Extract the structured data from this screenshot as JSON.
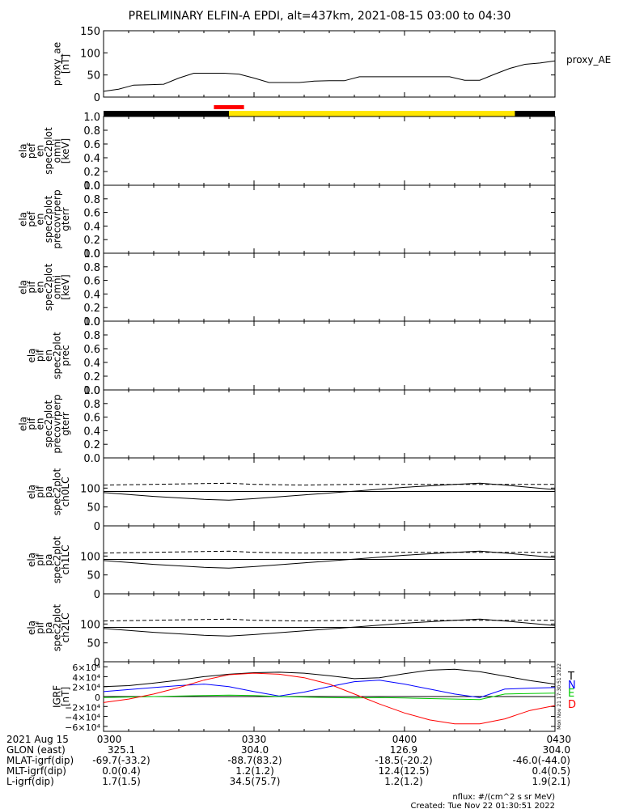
{
  "title": "PRELIMINARY ELFIN-A EPDI, alt=437km, 2021-08-15 03:00 to 04:30",
  "chart_data": [
    {
      "id": "ae",
      "type": "line",
      "ylabel_lines": [
        "proxy_ae",
        "[nT]"
      ],
      "yticks": [
        "150",
        "100",
        "50",
        "0"
      ],
      "ylim": [
        0,
        150
      ],
      "legend": "proxy_AE",
      "x": [
        0,
        3,
        6,
        9,
        12,
        15,
        18,
        21,
        24,
        27,
        30,
        33,
        36,
        39,
        42,
        45,
        48,
        51,
        54,
        57,
        60,
        63,
        66,
        69,
        72,
        75,
        78,
        81,
        84,
        87,
        90
      ],
      "values": [
        13,
        18,
        27,
        28,
        29,
        43,
        54,
        54,
        54,
        52,
        43,
        33,
        33,
        33,
        36,
        37,
        37,
        46,
        46,
        46,
        46,
        46,
        46,
        46,
        38,
        38,
        52,
        65,
        74,
        77,
        82
      ]
    },
    {
      "id": "bar",
      "type": "timeline",
      "segments": [
        {
          "from": 0,
          "to": 25,
          "color": "#000000"
        },
        {
          "from": 25,
          "to": 82,
          "color": "#ffe600"
        },
        {
          "from": 82,
          "to": 90,
          "color": "#000000"
        }
      ],
      "marker": {
        "from": 22,
        "to": 28,
        "color": "#ff0000"
      }
    },
    {
      "id": "p1",
      "type": "line",
      "ylabel_lines": [
        "ela",
        "pef",
        "en",
        "spec2plot",
        "omni",
        "[keV]"
      ],
      "yticks": [
        "1.0",
        "0.8",
        "0.6",
        "0.4",
        "0.2",
        "0.0"
      ],
      "ylim": [
        0,
        1
      ]
    },
    {
      "id": "p2",
      "type": "line",
      "ylabel_lines": [
        "ela",
        "pef",
        "en",
        "spec2plot",
        "precovrperp",
        "gterr"
      ],
      "yticks": [
        "1.0",
        "0.8",
        "0.6",
        "0.4",
        "0.2",
        "0.0"
      ],
      "ylim": [
        0,
        1
      ]
    },
    {
      "id": "p3",
      "type": "line",
      "ylabel_lines": [
        "ela",
        "pif",
        "en",
        "spec2plot",
        "omni",
        "[keV]"
      ],
      "yticks": [
        "1.0",
        "0.8",
        "0.6",
        "0.4",
        "0.2",
        "0.0"
      ],
      "ylim": [
        0,
        1
      ]
    },
    {
      "id": "p4",
      "type": "line",
      "ylabel_lines": [
        "ela",
        "pif",
        "en",
        "spec2plot",
        "prec"
      ],
      "yticks": [
        "1.0",
        "0.8",
        "0.6",
        "0.4",
        "0.2",
        "0.0"
      ],
      "ylim": [
        0,
        1
      ]
    },
    {
      "id": "p5",
      "type": "line",
      "ylabel_lines": [
        "ela",
        "pif",
        "en",
        "spec2plot",
        "precovrperp",
        "gterr"
      ],
      "yticks": [
        "1.0",
        "0.8",
        "0.6",
        "0.4",
        "0.2",
        "0.0"
      ],
      "ylim": [
        0,
        1
      ]
    },
    {
      "id": "p6",
      "type": "line",
      "ylabel_lines": [
        "ela",
        "pif",
        "pa",
        "spec2plot",
        "ch0LC"
      ],
      "yticks": [
        "100",
        "50",
        "0"
      ],
      "ytick_values": [
        100,
        50,
        0
      ],
      "ylim": [
        0,
        180
      ],
      "x": [
        0,
        10,
        20,
        25,
        30,
        40,
        50,
        60,
        70,
        75,
        80,
        90
      ],
      "series": [
        {
          "style": "dashed",
          "values": [
            108,
            110,
            112,
            113,
            110,
            108,
            110,
            110,
            110,
            110,
            110,
            110
          ]
        },
        {
          "style": "solid",
          "values": [
            91,
            91,
            91,
            91,
            91,
            91,
            91,
            91,
            91,
            91,
            91,
            91
          ]
        },
        {
          "style": "solid",
          "values": [
            88,
            78,
            70,
            68,
            72,
            82,
            92,
            102,
            110,
            113,
            108,
            96
          ]
        }
      ]
    },
    {
      "id": "p7",
      "type": "line",
      "ylabel_lines": [
        "ela",
        "pif",
        "pa",
        "spec2plot",
        "ch1LC"
      ],
      "yticks": [
        "100",
        "50",
        "0"
      ],
      "ytick_values": [
        100,
        50,
        0
      ],
      "ylim": [
        0,
        180
      ],
      "x": [
        0,
        10,
        20,
        25,
        30,
        40,
        50,
        60,
        70,
        75,
        80,
        90
      ],
      "series": [
        {
          "style": "dashed",
          "values": [
            108,
            110,
            112,
            113,
            110,
            108,
            110,
            110,
            110,
            110,
            110,
            110
          ]
        },
        {
          "style": "solid",
          "values": [
            91,
            91,
            91,
            91,
            91,
            91,
            91,
            91,
            91,
            91,
            91,
            91
          ]
        },
        {
          "style": "solid",
          "values": [
            88,
            78,
            70,
            68,
            72,
            82,
            92,
            102,
            110,
            113,
            108,
            96
          ]
        }
      ]
    },
    {
      "id": "p8",
      "type": "line",
      "ylabel_lines": [
        "ela",
        "pif",
        "pa",
        "spec2plot",
        "ch2LC"
      ],
      "yticks": [
        "100",
        "50",
        "0"
      ],
      "ytick_values": [
        100,
        50,
        0
      ],
      "ylim": [
        0,
        180
      ],
      "x": [
        0,
        10,
        20,
        25,
        30,
        40,
        50,
        60,
        70,
        75,
        80,
        90
      ],
      "series": [
        {
          "style": "dashed",
          "values": [
            108,
            110,
            112,
            113,
            110,
            108,
            110,
            110,
            110,
            110,
            110,
            110
          ]
        },
        {
          "style": "solid",
          "values": [
            91,
            91,
            91,
            91,
            91,
            91,
            91,
            91,
            91,
            91,
            91,
            91
          ]
        },
        {
          "style": "solid",
          "values": [
            88,
            78,
            70,
            68,
            72,
            82,
            92,
            102,
            110,
            113,
            108,
            96
          ]
        }
      ]
    },
    {
      "id": "igrf",
      "type": "line",
      "ylabel_lines": [
        "IGRF",
        "[nT]"
      ],
      "yticks": [
        "6×10⁴",
        "4×10⁴",
        "2×10⁴",
        "0",
        "−2×10⁴",
        "−4×10⁴",
        "−6×10⁴"
      ],
      "ytick_values": [
        60000,
        40000,
        20000,
        0,
        -20000,
        -40000,
        -60000
      ],
      "ylim": [
        -70000,
        70000
      ],
      "side_label": "Mon Nov 21 17:30:51 2022",
      "x": [
        0,
        5,
        10,
        15,
        20,
        25,
        30,
        35,
        40,
        45,
        50,
        55,
        60,
        65,
        70,
        75,
        80,
        85,
        90
      ],
      "series": [
        {
          "name": "T",
          "color": "#000000",
          "values": [
            20000,
            22000,
            27000,
            33000,
            40000,
            45000,
            48000,
            49000,
            47000,
            42000,
            36000,
            38000,
            46000,
            53000,
            55000,
            50000,
            41000,
            32000,
            25000
          ]
        },
        {
          "name": "N",
          "color": "#0000ff",
          "values": [
            10000,
            14000,
            18000,
            22000,
            25000,
            20000,
            10000,
            1000,
            9000,
            20000,
            30000,
            33000,
            25000,
            15000,
            5000,
            -2000,
            15000,
            17000,
            18000
          ]
        },
        {
          "name": "E",
          "color": "#00cc00",
          "values": [
            -2000,
            -1000,
            0,
            1000,
            2000,
            3000,
            2000,
            0,
            -1000,
            -2000,
            -3000,
            -2000,
            -3000,
            -4000,
            -5000,
            -6000,
            5000,
            6000,
            7000
          ]
        },
        {
          "name": "D",
          "color": "#ff0000",
          "values": [
            -12000,
            -5000,
            5000,
            18000,
            33000,
            44000,
            47000,
            45000,
            38000,
            25000,
            5000,
            -15000,
            -33000,
            -47000,
            -55000,
            -55000,
            -45000,
            -28000,
            -18000
          ]
        }
      ]
    }
  ],
  "xaxis": {
    "date": "2021 Aug 15",
    "ticks": [
      {
        "x": 0,
        "label": "0300"
      },
      {
        "x": 30,
        "label": "0330"
      },
      {
        "x": 60,
        "label": "0400"
      },
      {
        "x": 90,
        "label": "0430"
      }
    ],
    "rows": [
      {
        "label": "GLON (east)",
        "values": [
          "325.1",
          "304.0",
          "126.9",
          "304.0"
        ]
      },
      {
        "label": "MLAT-igrf(dip)",
        "values": [
          "-69.7(-33.2)",
          "-88.7(83.2)",
          "-18.5(-20.2)",
          "-46.0(-44.0)"
        ]
      },
      {
        "label": "MLT-igrf(dip)",
        "values": [
          "0.0(0.4)",
          "1.2(1.2)",
          "12.4(12.5)",
          "0.4(0.5)"
        ]
      },
      {
        "label": "L-igrf(dip)",
        "values": [
          "1.7(1.5)",
          "34.5(75.7)",
          "1.2(1.2)",
          "1.9(2.1)"
        ]
      }
    ]
  },
  "footer": {
    "nflux": "nflux: #/(cm^2 s sr MeV)",
    "created": "Created: Tue Nov 22 01:30:51 2022"
  }
}
